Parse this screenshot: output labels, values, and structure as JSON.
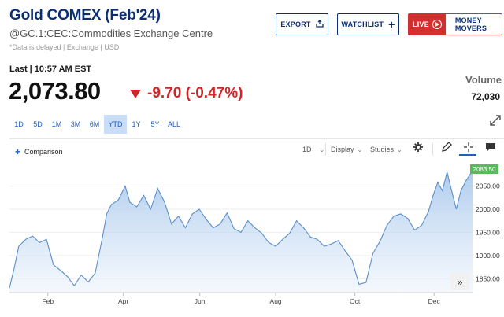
{
  "header": {
    "title": "Gold COMEX (Feb'24)",
    "symbol_line": "@GC.1:CEC:Commodities Exchange Centre",
    "delayed_note": "*Data is delayed | Exchange | USD"
  },
  "buttons": {
    "export": "EXPORT",
    "watchlist": "WATCHLIST",
    "live": "LIVE",
    "money_movers": "MONEY MOVERS"
  },
  "quote": {
    "last_time": "Last | 10:57 AM EST",
    "price": "2,073.80",
    "change": "-9.70 (-0.47%)",
    "volume_label": "Volume",
    "volume_value": "72,030"
  },
  "ranges": [
    "1D",
    "5D",
    "1M",
    "3M",
    "6M",
    "YTD",
    "1Y",
    "5Y",
    "ALL"
  ],
  "active_range": "YTD",
  "toolbar": {
    "comparison": "Comparison",
    "interval": "1D",
    "display": "Display",
    "studies": "Studies"
  },
  "icons": [
    "export-icon",
    "plus-icon",
    "play-icon",
    "expand-icon",
    "gear-icon",
    "pencil-icon",
    "crosshair-icon",
    "comment-icon",
    "fast-forward-icon"
  ],
  "colors": {
    "brand": "#0c2e72",
    "negative": "#d0262a",
    "live": "#d32f2f",
    "link": "#1f5fbf",
    "line": "#5a8fc9",
    "price_tag": "#5cb85c"
  },
  "chart_data": {
    "type": "area",
    "current_price_label": "2083.50",
    "x_tick_labels": [
      "Feb",
      "Apr",
      "Jun",
      "Aug",
      "Oct",
      "Dec"
    ],
    "y_tick_labels": [
      "2050.00",
      "2000.00",
      "1950.00",
      "1900.00",
      "1850.00"
    ],
    "y_ticks": [
      2050,
      2000,
      1950,
      1900,
      1850
    ],
    "ylim": [
      1820,
      2095
    ],
    "x_range": [
      0,
      1
    ],
    "x_tick_positions": [
      0.083,
      0.246,
      0.411,
      0.575,
      0.746,
      0.917
    ],
    "series": [
      {
        "x": [
          0.0,
          0.01,
          0.02,
          0.035,
          0.05,
          0.065,
          0.08,
          0.095,
          0.11,
          0.125,
          0.14,
          0.155,
          0.17,
          0.185,
          0.2,
          0.21,
          0.22,
          0.235,
          0.25,
          0.26,
          0.275,
          0.29,
          0.305,
          0.32,
          0.335,
          0.35,
          0.365,
          0.38,
          0.395,
          0.41,
          0.425,
          0.44,
          0.455,
          0.47,
          0.485,
          0.5,
          0.515,
          0.53,
          0.545,
          0.56,
          0.575,
          0.59,
          0.605,
          0.62,
          0.635,
          0.65,
          0.665,
          0.68,
          0.695,
          0.71,
          0.725,
          0.74,
          0.755,
          0.77,
          0.785,
          0.8,
          0.815,
          0.83,
          0.845,
          0.86,
          0.875,
          0.89,
          0.905,
          0.915,
          0.925,
          0.935,
          0.945,
          0.955,
          0.965,
          0.975,
          0.985,
          1.0
        ],
        "values": [
          1830,
          1872,
          1920,
          1935,
          1942,
          1928,
          1935,
          1880,
          1868,
          1855,
          1835,
          1858,
          1843,
          1862,
          1935,
          1990,
          2010,
          2020,
          2050,
          2015,
          2005,
          2030,
          2000,
          2045,
          2015,
          1968,
          1985,
          1960,
          1990,
          2000,
          1978,
          1960,
          1968,
          1992,
          1958,
          1950,
          1975,
          1960,
          1948,
          1928,
          1920,
          1935,
          1948,
          1975,
          1960,
          1940,
          1935,
          1920,
          1925,
          1932,
          1910,
          1890,
          1838,
          1842,
          1905,
          1930,
          1965,
          1985,
          1990,
          1980,
          1955,
          1965,
          1995,
          2030,
          2058,
          2040,
          2080,
          2040,
          2000,
          2040,
          2060,
          2083.5
        ]
      }
    ]
  }
}
